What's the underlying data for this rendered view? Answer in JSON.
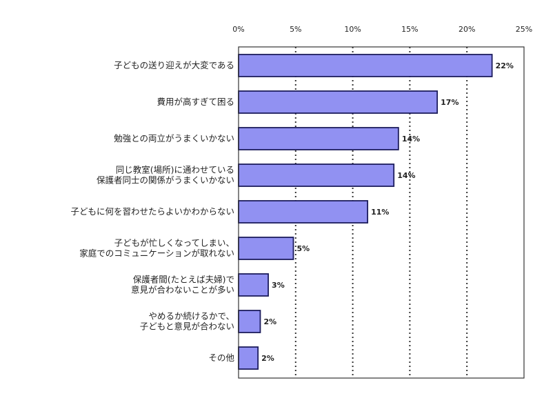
{
  "chart_data": {
    "type": "bar",
    "orientation": "horizontal",
    "title": "",
    "xlabel": "",
    "ylabel": "",
    "xlim": [
      0,
      25
    ],
    "ticks": [
      0,
      5,
      10,
      15,
      20,
      25
    ],
    "tick_labels": [
      "0%",
      "5%",
      "10%",
      "15%",
      "20%",
      "25%"
    ],
    "grid": true,
    "categories": [
      [
        "子どもの送り迎えが大変である"
      ],
      [
        "費用が高すぎて困る"
      ],
      [
        "勉強との両立がうまくいかない"
      ],
      [
        "同じ教室(場所)に通わせている",
        "保護者同士の関係がうまくいかない"
      ],
      [
        "子どもに何を習わせたらよいかわからない"
      ],
      [
        "子どもが忙しくなってしまい、",
        "家庭でのコミュニケーションが取れない"
      ],
      [
        "保護者間(たとえば夫婦)で",
        "意見が合わないことが多い"
      ],
      [
        "やめるか続けるかで、",
        "子どもと意見が合わない"
      ],
      [
        "その他"
      ]
    ],
    "values": [
      22.2,
      17.4,
      14.0,
      13.6,
      11.3,
      4.8,
      2.6,
      1.9,
      1.7
    ],
    "data_labels": [
      "22%",
      "17%",
      "14%",
      "14%",
      "11%",
      "5%",
      "3%",
      "2%",
      "2%"
    ],
    "colors": {
      "bar": "#9191f2",
      "bar_border": "#1c1c5c",
      "grid": "#333333"
    }
  }
}
